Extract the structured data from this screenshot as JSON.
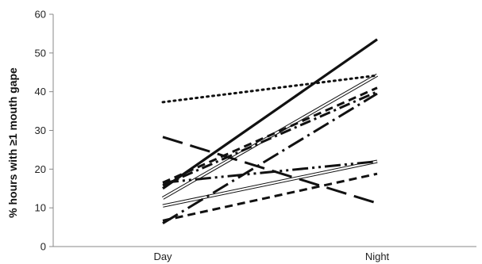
{
  "chart_data": {
    "type": "line",
    "title": "",
    "xlabel": "",
    "ylabel": "% hours with ≥1 mouth gape",
    "categories": [
      "Day",
      "Night"
    ],
    "ylim": [
      0,
      60
    ],
    "yticks": [
      0,
      10,
      20,
      30,
      40,
      50,
      60
    ],
    "grid": false,
    "legend": "none",
    "line_color": "#111111",
    "series": [
      {
        "values": [
          15.0,
          53.5
        ],
        "style": "solid-thick"
      },
      {
        "values": [
          37.3,
          44.2
        ],
        "style": "dotted"
      },
      {
        "values": [
          12.5,
          44.3
        ],
        "style": "double"
      },
      {
        "values": [
          16.5,
          41.0
        ],
        "style": "dashed"
      },
      {
        "values": [
          15.8,
          40.0
        ],
        "style": "dash-dot"
      },
      {
        "values": [
          6.0,
          39.5
        ],
        "style": "long-dash-dot"
      },
      {
        "values": [
          28.3,
          11.2
        ],
        "style": "long-dash"
      },
      {
        "values": [
          10.5,
          22.0
        ],
        "style": "double"
      },
      {
        "values": [
          16.5,
          22.0
        ],
        "style": "long-dash-dot-dot"
      },
      {
        "values": [
          6.7,
          18.8
        ],
        "style": "dashed"
      }
    ]
  }
}
